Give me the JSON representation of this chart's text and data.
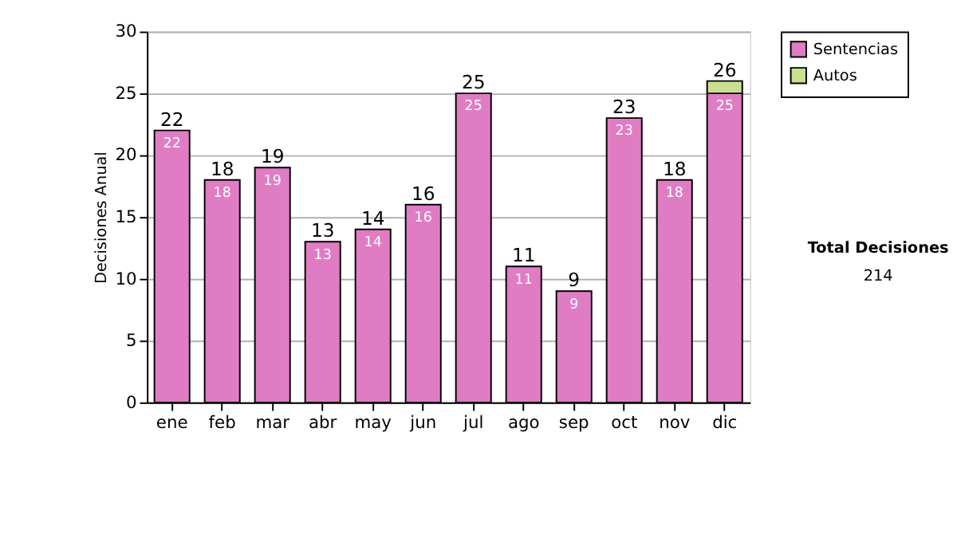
{
  "chart_data": {
    "type": "bar",
    "stacked": true,
    "ylabel": "Decisiones Anual",
    "categories": [
      "ene",
      "feb",
      "mar",
      "abr",
      "may",
      "jun",
      "jul",
      "ago",
      "sep",
      "oct",
      "nov",
      "dic"
    ],
    "series": [
      {
        "name": "Sentencias",
        "color": "#e07cc4",
        "values": [
          22,
          18,
          19,
          13,
          14,
          16,
          25,
          11,
          9,
          23,
          18,
          25
        ],
        "value_labels": [
          "22",
          "18",
          "19",
          "13",
          "14",
          "16",
          "25",
          "11",
          "9",
          "23",
          "18",
          "25"
        ]
      },
      {
        "name": "Autos",
        "color": "#c8e090",
        "values": [
          0,
          0,
          0,
          0,
          0,
          0,
          0,
          0,
          0,
          0,
          0,
          1
        ],
        "value_labels": [
          null,
          null,
          null,
          null,
          null,
          null,
          null,
          null,
          null,
          null,
          null,
          null
        ]
      }
    ],
    "totals": [
      "22",
      "18",
      "19",
      "13",
      "14",
      "16",
      "25",
      "11",
      "9",
      "23",
      "18",
      "26"
    ],
    "ylim": [
      0,
      30
    ],
    "yticks": [
      0,
      5,
      10,
      15,
      20,
      25,
      30
    ],
    "grid": "y",
    "legend": "right",
    "annotations": [
      "Total Decisiones",
      "214"
    ]
  }
}
